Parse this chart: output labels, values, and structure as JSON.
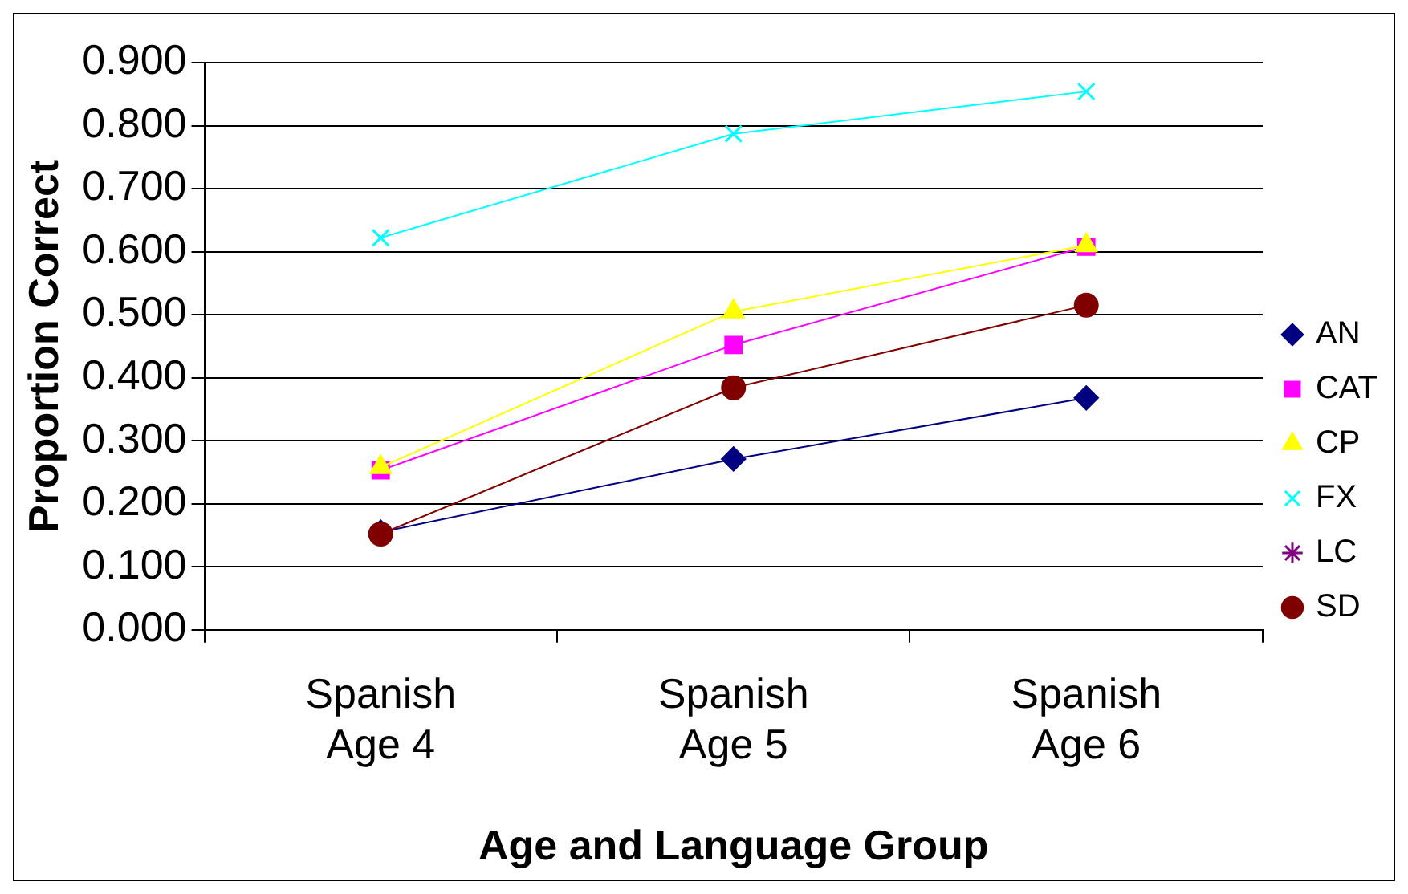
{
  "chart_data": {
    "type": "line",
    "xlabel": "Age and Language Group",
    "ylabel": "Proportion Correct",
    "categories": [
      "Spanish\nAge 4",
      "Spanish\nAge 5",
      "Spanish\nAge 6"
    ],
    "series": [
      {
        "name": "AN",
        "color": "#000080",
        "marker": "diamond",
        "values": [
          0.155,
          0.271,
          0.368
        ]
      },
      {
        "name": "CAT",
        "color": "#ff00ff",
        "marker": "square",
        "values": [
          0.253,
          0.452,
          0.608
        ]
      },
      {
        "name": "CP",
        "color": "#ffff00",
        "marker": "triangle",
        "values": [
          0.258,
          0.505,
          0.61
        ]
      },
      {
        "name": "FX",
        "color": "#00ffff",
        "marker": "cross",
        "values": [
          0.622,
          0.787,
          0.854
        ]
      },
      {
        "name": "LC",
        "color": "#800080",
        "marker": "star",
        "values": [
          null,
          null,
          null
        ]
      },
      {
        "name": "SD",
        "color": "#800000",
        "marker": "circle",
        "values": [
          0.152,
          0.384,
          0.515
        ]
      }
    ],
    "ylim": [
      0,
      0.9
    ],
    "yticks": [
      {
        "value": 0,
        "label": "0.000"
      },
      {
        "value": 0.1,
        "label": "0.100"
      },
      {
        "value": 0.2,
        "label": "0.200"
      },
      {
        "value": 0.3,
        "label": "0.300"
      },
      {
        "value": 0.4,
        "label": "0.400"
      },
      {
        "value": 0.5,
        "label": "0.500"
      },
      {
        "value": 0.6,
        "label": "0.600"
      },
      {
        "value": 0.7,
        "label": "0.700"
      },
      {
        "value": 0.8,
        "label": "0.800"
      },
      {
        "value": 0.9,
        "label": "0.900"
      }
    ],
    "grid": "y",
    "legend": "right"
  }
}
